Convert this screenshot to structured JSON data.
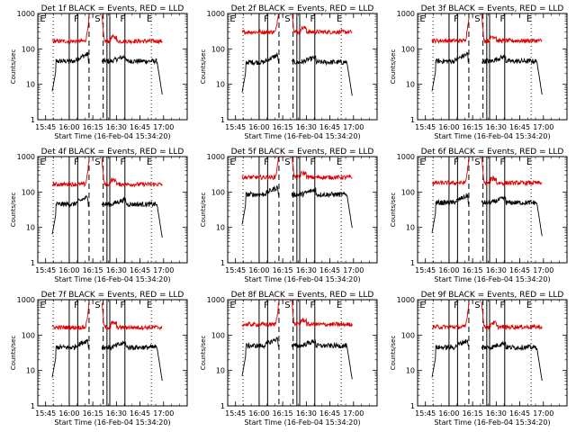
{
  "figure": {
    "background": "#ffffff",
    "events_color": "#000000",
    "lld_color": "#e00000"
  },
  "chart_data": [
    {
      "type": "line",
      "panel": "det-1f",
      "title": "Det 1f BLACK = Events, RED = LLD",
      "ylabel": "Counts/sec",
      "xlabel": "Start Time (16-Feb-04 15:34:20)",
      "yscale": "log",
      "ylim": [
        1,
        1000
      ],
      "yticks": [
        "1",
        "10",
        "100",
        "1000"
      ],
      "xlim": [
        15.667,
        17.25
      ],
      "xticks": [
        "15:45",
        "16:00",
        "16:15",
        "16:30",
        "16:45",
        "17:00"
      ],
      "markers": [
        "E",
        "F",
        "S",
        "F",
        "E"
      ],
      "series": [
        {
          "name": "Events",
          "color": "#000000",
          "level": 45
        },
        {
          "name": "LLD",
          "color": "#e00000",
          "level": 165
        }
      ]
    },
    {
      "type": "line",
      "panel": "det-2f",
      "title": "Det 2f BLACK = Events, RED = LLD",
      "ylabel": "Counts/sec",
      "xlabel": "Start Time (16-Feb-04 15:34:20)",
      "yscale": "log",
      "ylim": [
        1,
        1000
      ],
      "yticks": [
        "1",
        "10",
        "100",
        "1000"
      ],
      "xlim": [
        15.667,
        17.25
      ],
      "xticks": [
        "15:45",
        "16:00",
        "16:15",
        "16:30",
        "16:45",
        "17:00"
      ],
      "markers": [
        "E",
        "F",
        "S",
        "F",
        "E"
      ],
      "series": [
        {
          "name": "Events",
          "color": "#000000",
          "level": 42
        },
        {
          "name": "LLD",
          "color": "#e00000",
          "level": 300
        }
      ]
    },
    {
      "type": "line",
      "panel": "det-3f",
      "title": "Det 3f BLACK = Events, RED = LLD",
      "ylabel": "Counts/sec",
      "xlabel": "Start Time (16-Feb-04 15:34:20)",
      "yscale": "log",
      "ylim": [
        1,
        1000
      ],
      "yticks": [
        "1",
        "10",
        "100",
        "1000"
      ],
      "xlim": [
        15.667,
        17.25
      ],
      "xticks": [
        "15:45",
        "16:00",
        "16:15",
        "16:30",
        "16:45",
        "17:00"
      ],
      "markers": [
        "E",
        "F",
        "S",
        "F",
        "E"
      ],
      "series": [
        {
          "name": "Events",
          "color": "#000000",
          "level": 45
        },
        {
          "name": "LLD",
          "color": "#e00000",
          "level": 170
        }
      ]
    },
    {
      "type": "line",
      "panel": "det-4f",
      "title": "Det 4f BLACK = Events, RED = LLD",
      "ylabel": "Counts/sec",
      "xlabel": "Start Time (16-Feb-04 15:34:20)",
      "yscale": "log",
      "ylim": [
        1,
        1000
      ],
      "yticks": [
        "1",
        "10",
        "100",
        "1000"
      ],
      "xlim": [
        15.667,
        17.25
      ],
      "xticks": [
        "15:45",
        "16:00",
        "16:15",
        "16:30",
        "16:45",
        "17:00"
      ],
      "markers": [
        "E",
        "F",
        "S",
        "F",
        "E"
      ],
      "series": [
        {
          "name": "Events",
          "color": "#000000",
          "level": 45
        },
        {
          "name": "LLD",
          "color": "#e00000",
          "level": 165
        }
      ]
    },
    {
      "type": "line",
      "panel": "det-5f",
      "title": "Det 5f BLACK = Events, RED = LLD",
      "ylabel": "Counts/sec",
      "xlabel": "Start Time (16-Feb-04 15:34:20)",
      "yscale": "log",
      "ylim": [
        1,
        1000
      ],
      "yticks": [
        "1",
        "10",
        "100",
        "1000"
      ],
      "xlim": [
        15.667,
        17.25
      ],
      "xticks": [
        "15:45",
        "16:00",
        "16:15",
        "16:30",
        "16:45",
        "17:00"
      ],
      "markers": [
        "E",
        "F",
        "S",
        "F",
        "E"
      ],
      "series": [
        {
          "name": "Events",
          "color": "#000000",
          "level": 85
        },
        {
          "name": "LLD",
          "color": "#e00000",
          "level": 260
        }
      ]
    },
    {
      "type": "line",
      "panel": "det-6f",
      "title": "Det 6f BLACK = Events, RED = LLD",
      "ylabel": "Counts/sec",
      "xlabel": "Start Time (16-Feb-04 15:34:20)",
      "yscale": "log",
      "ylim": [
        1,
        1000
      ],
      "yticks": [
        "1",
        "10",
        "100",
        "1000"
      ],
      "xlim": [
        15.667,
        17.25
      ],
      "xticks": [
        "15:45",
        "16:00",
        "16:15",
        "16:30",
        "16:45",
        "17:00"
      ],
      "markers": [
        "E",
        "F",
        "S",
        "F",
        "E"
      ],
      "series": [
        {
          "name": "Events",
          "color": "#000000",
          "level": 50
        },
        {
          "name": "LLD",
          "color": "#e00000",
          "level": 180
        }
      ]
    },
    {
      "type": "line",
      "panel": "det-7f",
      "title": "Det 7f BLACK = Events, RED = LLD",
      "ylabel": "Counts/sec",
      "xlabel": "Start Time (16-Feb-04 15:34:20)",
      "yscale": "log",
      "ylim": [
        1,
        1000
      ],
      "yticks": [
        "1",
        "10",
        "100",
        "1000"
      ],
      "xlim": [
        15.667,
        17.25
      ],
      "xticks": [
        "15:45",
        "16:00",
        "16:15",
        "16:30",
        "16:45",
        "17:00"
      ],
      "markers": [
        "E",
        "F",
        "S",
        "F",
        "E"
      ],
      "series": [
        {
          "name": "Events",
          "color": "#000000",
          "level": 45
        },
        {
          "name": "LLD",
          "color": "#e00000",
          "level": 165
        }
      ]
    },
    {
      "type": "line",
      "panel": "det-8f",
      "title": "Det 8f BLACK = Events, RED = LLD",
      "ylabel": "Counts/sec",
      "xlabel": "Start Time (16-Feb-04 15:34:20)",
      "yscale": "log",
      "ylim": [
        1,
        1000
      ],
      "yticks": [
        "1",
        "10",
        "100",
        "1000"
      ],
      "xlim": [
        15.667,
        17.25
      ],
      "xticks": [
        "15:45",
        "16:00",
        "16:15",
        "16:30",
        "16:45",
        "17:00"
      ],
      "markers": [
        "E",
        "F",
        "S",
        "F",
        "E"
      ],
      "series": [
        {
          "name": "Events",
          "color": "#000000",
          "level": 50
        },
        {
          "name": "LLD",
          "color": "#e00000",
          "level": 200
        }
      ]
    },
    {
      "type": "line",
      "panel": "det-9f",
      "title": "Det 9f BLACK = Events, RED = LLD",
      "ylabel": "Counts/sec",
      "xlabel": "Start Time (16-Feb-04 15:34:20)",
      "yscale": "log",
      "ylim": [
        1,
        1000
      ],
      "yticks": [
        "1",
        "10",
        "100",
        "1000"
      ],
      "xlim": [
        15.667,
        17.25
      ],
      "xticks": [
        "15:45",
        "16:00",
        "16:15",
        "16:30",
        "16:45",
        "17:00"
      ],
      "markers": [
        "E",
        "F",
        "S",
        "F",
        "E"
      ],
      "series": [
        {
          "name": "Events",
          "color": "#000000",
          "level": 45
        },
        {
          "name": "LLD",
          "color": "#e00000",
          "level": 170
        }
      ]
    }
  ]
}
